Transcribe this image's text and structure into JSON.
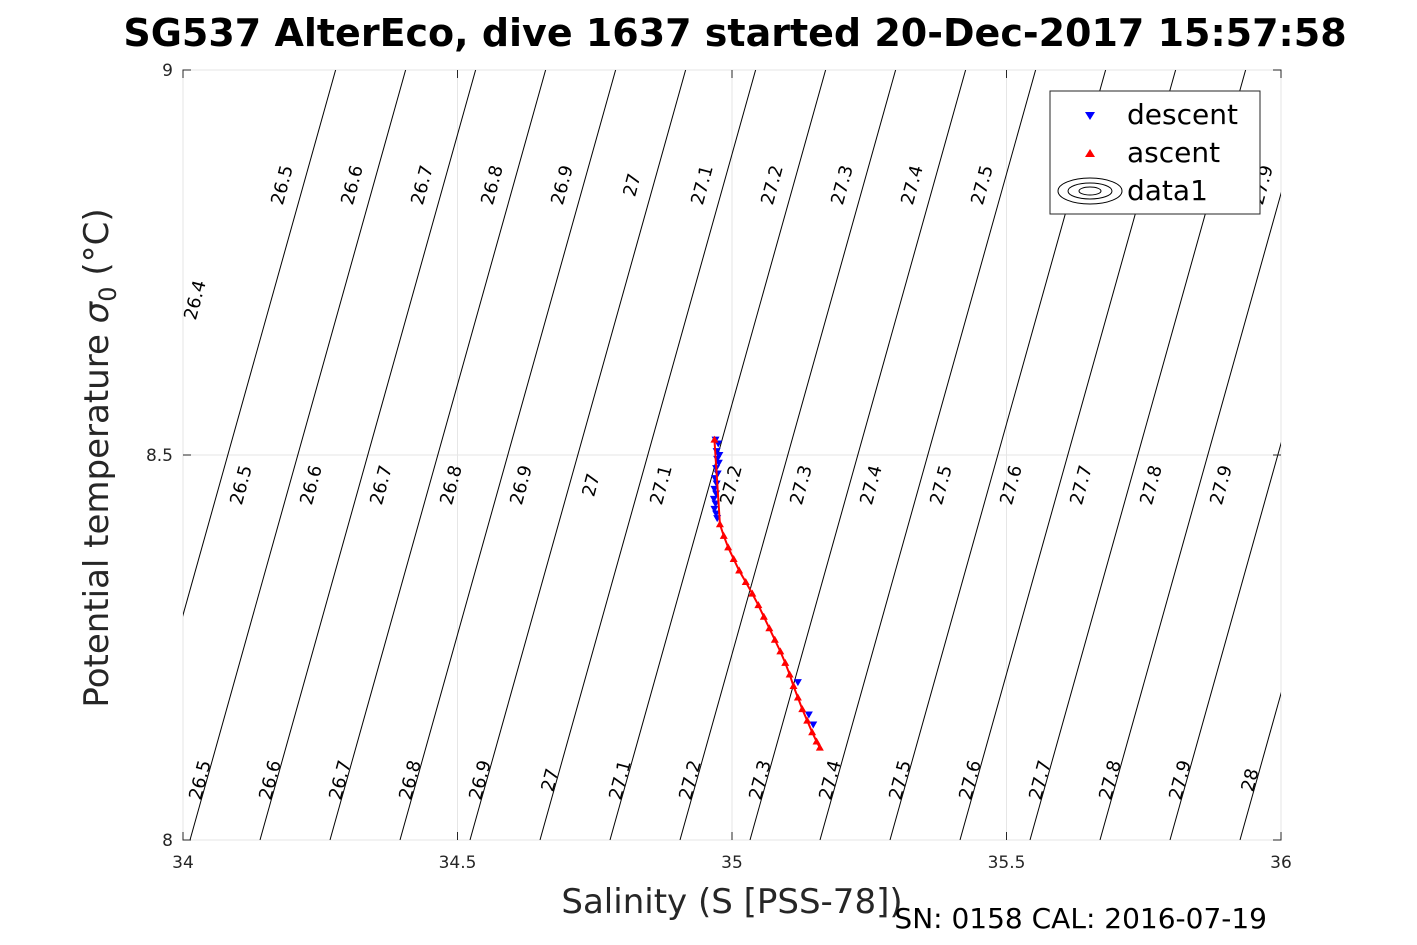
{
  "chart_data": {
    "type": "scatter",
    "title": "SG537 AlterEco, dive 1637 started 20-Dec-2017 15:57:58",
    "xlabel": "Salinity (S [PSS-78])",
    "ylabel_main": "Potential temperature ",
    "ylabel_sigma": "σ",
    "ylabel_sub": "0",
    "ylabel_unit": " (°C)",
    "footer": "SN: 0158  CAL: 2016-07-19",
    "xlim": [
      34,
      36
    ],
    "ylim": [
      8,
      9
    ],
    "x_ticks": [
      "34",
      "34.5",
      "35",
      "35.5",
      "36"
    ],
    "y_ticks": [
      "8",
      "8.5",
      "9"
    ],
    "grid": true,
    "legend_position": "top-right",
    "legend": [
      {
        "name": "descent",
        "marker": "triangle-down",
        "color": "#0000ff"
      },
      {
        "name": "ascent",
        "marker": "triangle-up",
        "color": "#ff0000"
      },
      {
        "name": "data1",
        "marker": "contour",
        "color": "#000000"
      }
    ],
    "series": [
      {
        "name": "descent",
        "color": "#0000ff",
        "points": [
          [
            34.97,
            8.52
          ],
          [
            34.975,
            8.515
          ],
          [
            34.972,
            8.505
          ],
          [
            34.977,
            8.5
          ],
          [
            34.973,
            8.495
          ],
          [
            34.976,
            8.49
          ],
          [
            34.971,
            8.483
          ],
          [
            34.974,
            8.476
          ],
          [
            34.969,
            8.47
          ],
          [
            34.972,
            8.463
          ],
          [
            34.968,
            8.456
          ],
          [
            34.971,
            8.45
          ],
          [
            34.967,
            8.443
          ],
          [
            34.97,
            8.437
          ],
          [
            34.968,
            8.43
          ],
          [
            34.971,
            8.424
          ],
          [
            34.973,
            8.418
          ],
          [
            35.12,
            8.205
          ],
          [
            35.14,
            8.163
          ],
          [
            35.148,
            8.15
          ]
        ]
      },
      {
        "name": "ascent",
        "color": "#ff0000",
        "points": [
          [
            34.968,
            8.52
          ],
          [
            34.978,
            8.41
          ],
          [
            34.985,
            8.395
          ],
          [
            34.993,
            8.38
          ],
          [
            35.003,
            8.365
          ],
          [
            35.013,
            8.35
          ],
          [
            35.025,
            8.335
          ],
          [
            35.037,
            8.32
          ],
          [
            35.048,
            8.305
          ],
          [
            35.058,
            8.29
          ],
          [
            35.068,
            8.275
          ],
          [
            35.078,
            8.26
          ],
          [
            35.088,
            8.245
          ],
          [
            35.097,
            8.23
          ],
          [
            35.105,
            8.215
          ],
          [
            35.112,
            8.2
          ],
          [
            35.12,
            8.185
          ],
          [
            35.128,
            8.17
          ],
          [
            35.137,
            8.155
          ],
          [
            35.146,
            8.14
          ],
          [
            35.154,
            8.128
          ],
          [
            35.16,
            8.12
          ]
        ]
      }
    ],
    "contour_labels": {
      "top": [
        "26.4",
        "26.5",
        "26.6",
        "26.7",
        "26.8",
        "26.9",
        "27",
        "27.1",
        "27.2",
        "27.3",
        "27.4",
        "27.5",
        "27.6",
        "27.7",
        "27.8",
        "27.9"
      ],
      "middle": [
        "26.5",
        "26.6",
        "26.7",
        "26.8",
        "26.9",
        "27",
        "27.1",
        "27.2",
        "27.3",
        "27.4",
        "27.5",
        "27.6",
        "27.7",
        "27.8",
        "27.9"
      ],
      "bottom": [
        "26.5",
        "26.6",
        "26.7",
        "26.8",
        "26.9",
        "27",
        "27.1",
        "27.2",
        "27.3",
        "27.4",
        "27.5",
        "27.6",
        "27.7",
        "27.8",
        "27.9",
        "28"
      ]
    }
  }
}
